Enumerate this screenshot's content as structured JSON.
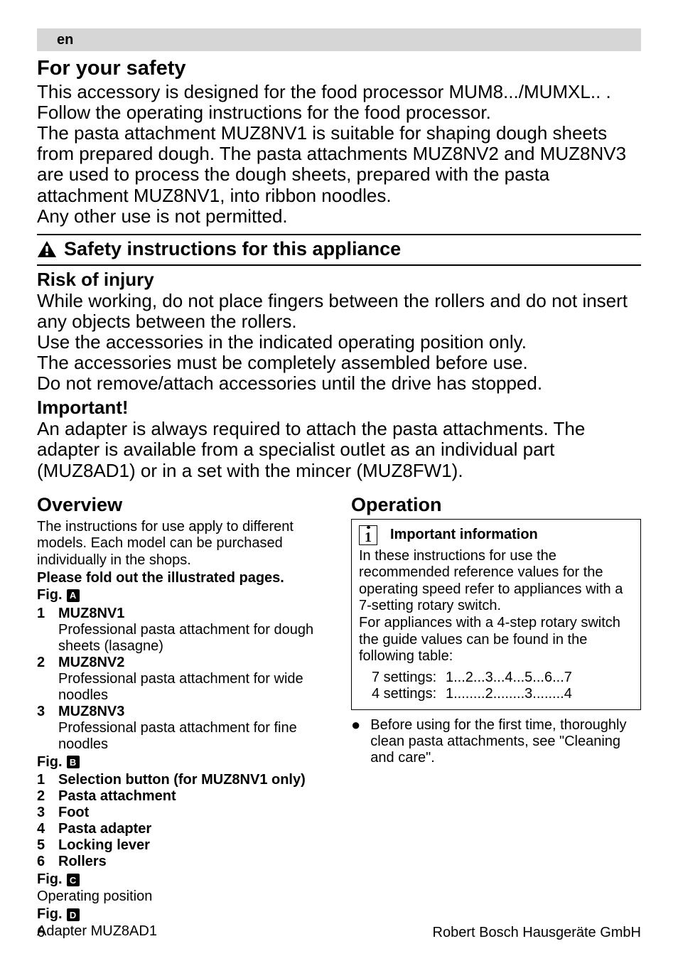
{
  "lang_code": "en",
  "safety_heading": "For your safety",
  "intro_text": "This accessory is designed for the food processor MUM8.../MUMXL.. . Follow the operating instructions for the food processor.\nThe pasta attachment MUZ8NV1 is suitable for shaping dough sheets from prepared dough. The pasta attachments MUZ8NV2 and MUZ8NV3 are used to process the dough sheets, prepared with the pasta attachment MUZ8NV1, into ribbon noodles.\nAny other use is not permitted.",
  "safety_section_title": "Safety instructions for this appliance",
  "risk_heading": "Risk of injury",
  "risk_text": "While working, do not place fingers between the rollers and do not insert any objects between the rollers.\nUse the accessories in the indicated operating position only.\nThe accessories must be completely assembled before use.\nDo not remove/attach accessories until the drive has stopped.",
  "important_heading": "Important!",
  "important_text": "An adapter is always required to attach the pasta attachments. The adapter is available from a specialist outlet as an individual part (MUZ8AD1) or in a set with the mincer (MUZ8FW1).",
  "overview": {
    "heading": "Overview",
    "intro": "The instructions for use apply to different models. Each model can be purchased individually in the shops.",
    "fold_note": "Please fold out the illustrated pages.",
    "fig_label": "Fig.",
    "figA_letter": "A",
    "figA_items": [
      {
        "n": "1",
        "hd": "MUZ8NV1",
        "desc": "Professional pasta attachment for dough sheets (lasagne)"
      },
      {
        "n": "2",
        "hd": "MUZ8NV2",
        "desc": "Professional pasta attachment for wide noodles"
      },
      {
        "n": "3",
        "hd": "MUZ8NV3",
        "desc": "Professional pasta attachment for fine noodles"
      }
    ],
    "figB_letter": "B",
    "figB_items": [
      {
        "n": "1",
        "hd": "Selection button (for MUZ8NV1 only)"
      },
      {
        "n": "2",
        "hd": "Pasta attachment"
      },
      {
        "n": "3",
        "hd": "Foot"
      },
      {
        "n": "4",
        "hd": "Pasta adapter"
      },
      {
        "n": "5",
        "hd": "Locking lever"
      },
      {
        "n": "6",
        "hd": "Rollers"
      }
    ],
    "figC_letter": "C",
    "figC_text": "Operating position",
    "figD_letter": "D",
    "figD_text": "Adapter MUZ8AD1"
  },
  "operation": {
    "heading": "Operation",
    "note_label": "Important information",
    "note_text": "In these instructions for use the recommended reference values for the operating speed refer to appliances with a 7-setting rotary switch.\nFor appliances with a 4-step rotary switch the guide values can be found in the following table:",
    "settings7_label": "7 settings:",
    "settings7_vals": "1...2...3...4...5...6...7",
    "settings4_label": "4 settings:",
    "settings4_vals": "1........2........3........4",
    "bullet1": "Before using for the first time, thoroughly clean pasta attachments, see \"Cleaning and care\"."
  },
  "footer": {
    "page": "6",
    "brand": "Robert Bosch Hausgeräte GmbH"
  }
}
